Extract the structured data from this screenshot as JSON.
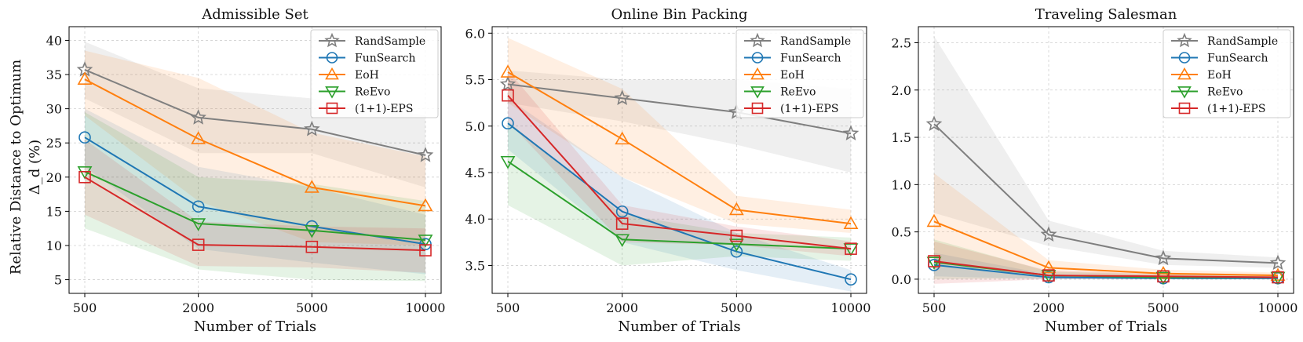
{
  "figure": {
    "ylabel_line1": "Relative Distance to Optimum",
    "ylabel_line2": "Δ_d (%)"
  },
  "styles": {
    "RandSample": {
      "color": "#7f7f7f",
      "marker": "star"
    },
    "FunSearch": {
      "color": "#1f77b4",
      "marker": "circle"
    },
    "EoH": {
      "color": "#ff7f0e",
      "marker": "triangle-up"
    },
    "ReEvo": {
      "color": "#2ca02c",
      "marker": "triangle-down"
    },
    "(1+1)-EPS": {
      "color": "#d62728",
      "marker": "square"
    }
  },
  "chart_data": [
    {
      "type": "line",
      "title": "Admissible Set",
      "xlabel": "Number of Trials",
      "ylabel": "Relative Distance to Optimum Δ_d (%)",
      "categories": [
        "500",
        "2000",
        "5000",
        "10000"
      ],
      "ylim": [
        3,
        42
      ],
      "yticks": [
        5,
        10,
        15,
        20,
        25,
        30,
        35,
        40
      ],
      "ytick_labels": [
        "5",
        "10",
        "15",
        "20",
        "25",
        "30",
        "35",
        "40"
      ],
      "grid": true,
      "legend_position": "top-right",
      "series": [
        {
          "name": "RandSample",
          "values": [
            35.7,
            28.7,
            27.0,
            23.2
          ],
          "lower": [
            31.5,
            23.5,
            23.5,
            18.5
          ],
          "upper": [
            39.8,
            33.0,
            31.5,
            29.0
          ]
        },
        {
          "name": "FunSearch",
          "values": [
            25.8,
            15.7,
            12.8,
            10.2
          ],
          "lower": [
            21.5,
            9.5,
            7.5,
            5.8
          ],
          "upper": [
            30.0,
            21.5,
            18.5,
            14.5
          ]
        },
        {
          "name": "EoH",
          "values": [
            34.3,
            25.6,
            18.5,
            15.8
          ],
          "lower": [
            29.0,
            16.5,
            10.5,
            10.0
          ],
          "upper": [
            38.5,
            34.5,
            26.5,
            23.0
          ]
        },
        {
          "name": "ReEvo",
          "values": [
            20.8,
            13.2,
            12.2,
            10.8
          ],
          "lower": [
            12.5,
            6.5,
            5.0,
            4.8
          ],
          "upper": [
            29.5,
            20.0,
            19.0,
            16.5
          ]
        },
        {
          "name": "(1+1)-EPS",
          "values": [
            20.0,
            10.1,
            9.8,
            9.3
          ],
          "lower": [
            14.5,
            7.0,
            6.8,
            6.0
          ],
          "upper": [
            25.5,
            13.5,
            12.8,
            12.5
          ]
        }
      ]
    },
    {
      "type": "line",
      "title": "Online Bin Packing",
      "xlabel": "Number of Trials",
      "ylabel": "",
      "categories": [
        "500",
        "2000",
        "5000",
        "10000"
      ],
      "ylim": [
        3.2,
        6.07
      ],
      "yticks": [
        3.5,
        4.0,
        4.5,
        5.0,
        5.5,
        6.0
      ],
      "ytick_labels": [
        "3.5",
        "4.0",
        "4.5",
        "5.0",
        "5.5",
        "6.0"
      ],
      "grid": true,
      "legend_position": "top-right",
      "series": [
        {
          "name": "RandSample",
          "values": [
            5.45,
            5.3,
            5.15,
            4.92
          ],
          "lower": [
            5.25,
            5.05,
            4.8,
            4.5
          ],
          "upper": [
            5.6,
            5.5,
            5.5,
            5.4
          ]
        },
        {
          "name": "FunSearch",
          "values": [
            5.03,
            4.08,
            3.65,
            3.35
          ],
          "lower": [
            4.75,
            3.75,
            3.45,
            3.22
          ],
          "upper": [
            5.3,
            4.45,
            3.85,
            3.45
          ]
        },
        {
          "name": "EoH",
          "values": [
            5.58,
            4.86,
            4.1,
            3.95
          ],
          "lower": [
            5.25,
            4.45,
            3.95,
            3.85
          ],
          "upper": [
            5.95,
            5.4,
            4.25,
            4.1
          ]
        },
        {
          "name": "ReEvo",
          "values": [
            4.62,
            3.78,
            3.73,
            3.68
          ],
          "lower": [
            4.15,
            3.5,
            3.6,
            3.55
          ],
          "upper": [
            5.05,
            4.05,
            3.85,
            3.8
          ]
        },
        {
          "name": "(1+1)-EPS",
          "values": [
            5.33,
            3.95,
            3.82,
            3.68
          ],
          "lower": [
            5.05,
            3.75,
            3.72,
            3.6
          ],
          "upper": [
            5.6,
            4.15,
            3.92,
            3.76
          ]
        }
      ]
    },
    {
      "type": "line",
      "title": "Traveling Salesman",
      "xlabel": "Number of Trials",
      "ylabel": "",
      "categories": [
        "500",
        "2000",
        "5000",
        "10000"
      ],
      "ylim": [
        -0.15,
        2.67
      ],
      "yticks": [
        0.0,
        0.5,
        1.0,
        1.5,
        2.0,
        2.5
      ],
      "ytick_labels": [
        "0.0",
        "0.5",
        "1.0",
        "1.5",
        "2.0",
        "2.5"
      ],
      "grid": true,
      "legend_position": "top-right",
      "series": [
        {
          "name": "RandSample",
          "values": [
            1.64,
            0.47,
            0.22,
            0.17
          ],
          "lower": [
            0.7,
            0.35,
            0.15,
            0.12
          ],
          "upper": [
            2.57,
            0.62,
            0.3,
            0.23
          ]
        },
        {
          "name": "FunSearch",
          "values": [
            0.15,
            0.02,
            0.01,
            0.01
          ],
          "lower": [
            0.03,
            0.0,
            0.0,
            0.0
          ],
          "upper": [
            0.28,
            0.05,
            0.03,
            0.03
          ]
        },
        {
          "name": "EoH",
          "values": [
            0.61,
            0.12,
            0.06,
            0.04
          ],
          "lower": [
            0.18,
            0.06,
            0.03,
            0.02
          ],
          "upper": [
            1.12,
            0.2,
            0.1,
            0.07
          ]
        },
        {
          "name": "ReEvo",
          "values": [
            0.18,
            0.04,
            0.02,
            0.02
          ],
          "lower": [
            0.0,
            0.01,
            0.0,
            0.0
          ],
          "upper": [
            0.42,
            0.08,
            0.05,
            0.05
          ]
        },
        {
          "name": "(1+1)-EPS",
          "values": [
            0.19,
            0.04,
            0.03,
            0.02
          ],
          "lower": [
            -0.05,
            0.0,
            0.0,
            0.0
          ],
          "upper": [
            0.4,
            0.09,
            0.06,
            0.05
          ]
        }
      ]
    }
  ]
}
